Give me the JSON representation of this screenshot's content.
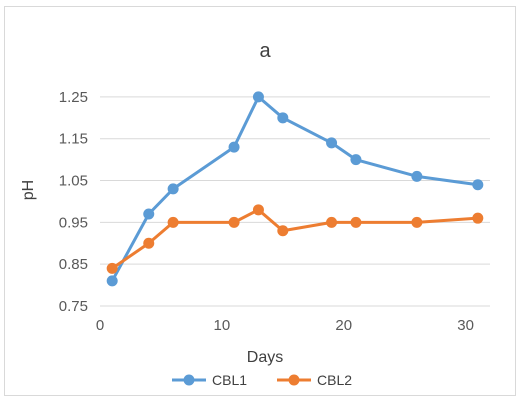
{
  "chart_data": {
    "type": "line",
    "title": "a",
    "xlabel": "Days",
    "ylabel": "pH",
    "xlim": [
      0,
      32
    ],
    "ylim": [
      0.75,
      1.3
    ],
    "x_ticks": [
      0,
      10,
      20,
      30
    ],
    "y_ticks": [
      0.75,
      0.85,
      0.95,
      1.05,
      1.15,
      1.25
    ],
    "x_tick_labels": [
      "0",
      "10",
      "20",
      "30"
    ],
    "y_tick_labels": [
      "0.75",
      "0.85",
      "0.95",
      "1.05",
      "1.15",
      "1.25"
    ],
    "grid": "horizontal",
    "legend_position": "bottom",
    "series": [
      {
        "name": "CBL1",
        "color": "#5b9bd5",
        "x": [
          1,
          4,
          6,
          11,
          13,
          15,
          19,
          21,
          26,
          31
        ],
        "y": [
          0.81,
          0.97,
          1.03,
          1.13,
          1.25,
          1.2,
          1.14,
          1.1,
          1.06,
          1.04
        ]
      },
      {
        "name": "CBL2",
        "color": "#ed7d31",
        "x": [
          1,
          4,
          6,
          11,
          13,
          15,
          19,
          21,
          26,
          31
        ],
        "y": [
          0.84,
          0.9,
          0.95,
          0.95,
          0.98,
          0.93,
          0.95,
          0.95,
          0.95,
          0.96
        ]
      }
    ]
  }
}
